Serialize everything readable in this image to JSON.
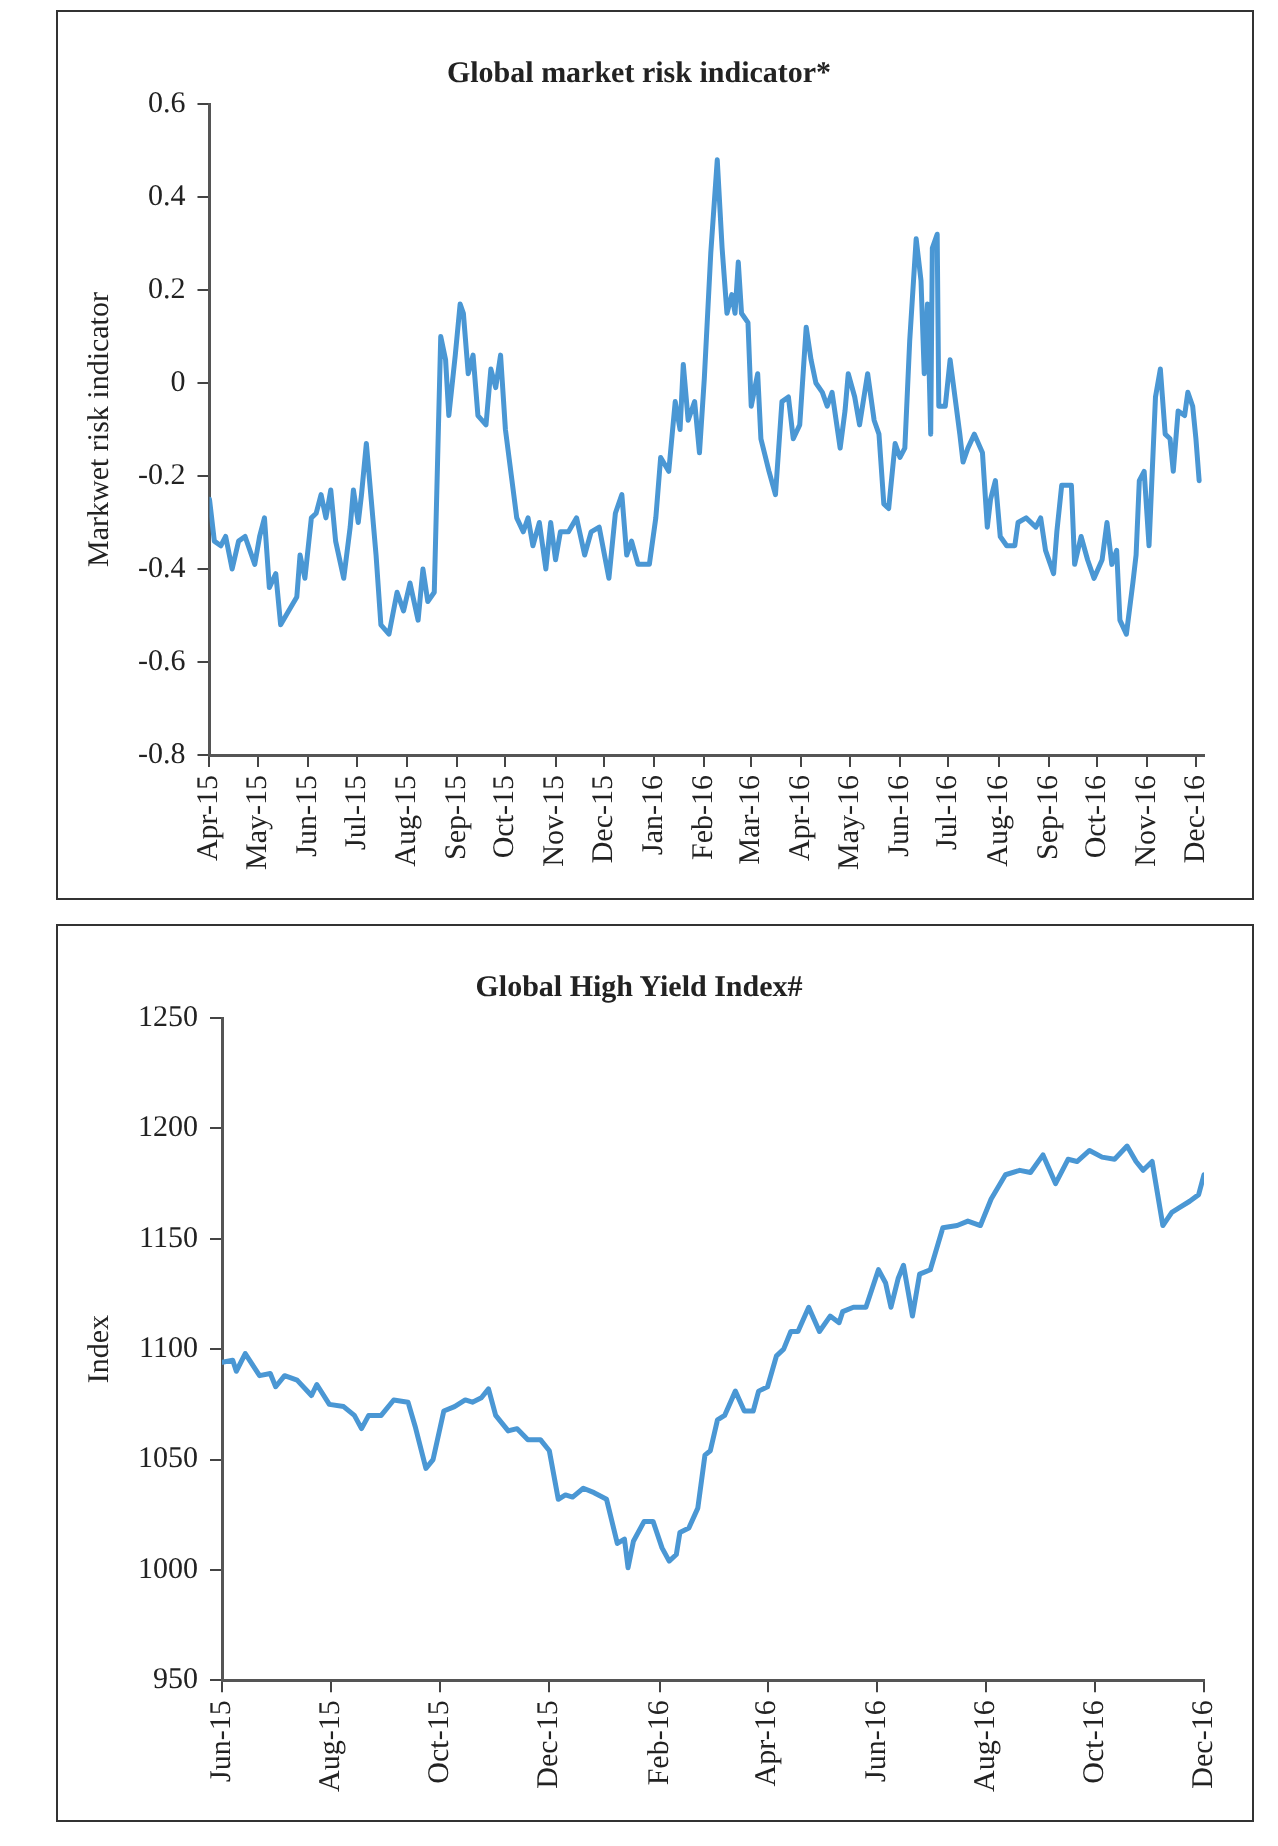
{
  "chart_data": [
    {
      "type": "line",
      "title": "Global market risk indicator*",
      "ylabel": "Markwet risk indicator",
      "xlim": [
        "2015-04-01",
        "2016-12-06"
      ],
      "ylim": [
        -0.8,
        0.6
      ],
      "yticks": [
        {
          "value": -0.8,
          "label": "-0.8"
        },
        {
          "value": -0.6,
          "label": "-0.6"
        },
        {
          "value": -0.4,
          "label": "-0.4"
        },
        {
          "value": -0.2,
          "label": "-0.2"
        },
        0,
        {
          "value": 0.2,
          "label": "0.2"
        },
        {
          "value": 0.4,
          "label": "0.4"
        },
        {
          "value": 0.6,
          "label": "0.6"
        }
      ],
      "xticks": [
        {
          "value": "2015-04-01",
          "label": "Apr-15"
        },
        {
          "value": "2015-05-01",
          "label": "May-15"
        },
        {
          "value": "2015-06-01",
          "label": "Jun-15"
        },
        {
          "value": "2015-07-01",
          "label": "Jul-15"
        },
        {
          "value": "2015-08-01",
          "label": "Aug-15"
        },
        {
          "value": "2015-09-01",
          "label": "Sep-15"
        },
        {
          "value": "2015-10-01",
          "label": "Oct-15"
        },
        {
          "value": "2015-11-01",
          "label": "Nov-15"
        },
        {
          "value": "2015-12-01",
          "label": "Dec-15"
        },
        {
          "value": "2016-01-01",
          "label": "Jan-16"
        },
        {
          "value": "2016-02-01",
          "label": "Feb-16"
        },
        {
          "value": "2016-03-01",
          "label": "Mar-16"
        },
        {
          "value": "2016-04-01",
          "label": "Apr-16"
        },
        {
          "value": "2016-05-01",
          "label": "May-16"
        },
        {
          "value": "2016-06-01",
          "label": "Jun-16"
        },
        {
          "value": "2016-07-01",
          "label": "Jul-16"
        },
        {
          "value": "2016-08-01",
          "label": "Aug-16"
        },
        {
          "value": "2016-09-01",
          "label": "Sep-16"
        },
        {
          "value": "2016-10-01",
          "label": "Oct-16"
        },
        {
          "value": "2016-11-01",
          "label": "Nov-16"
        },
        {
          "value": "2016-12-01",
          "label": "Dec-16"
        }
      ],
      "grid": false,
      "marker": "none",
      "line_style": "solid",
      "series": [
        {
          "color": "#4a97d4",
          "x": [
            "2015-04-01",
            "2015-04-04",
            "2015-04-08",
            "2015-04-11",
            "2015-04-15",
            "2015-04-19",
            "2015-04-23",
            "2015-04-29",
            "2015-05-02",
            "2015-05-05",
            "2015-05-08",
            "2015-05-12",
            "2015-05-15",
            "2015-05-20",
            "2015-05-25",
            "2015-05-27",
            "2015-05-30",
            "2015-06-03",
            "2015-06-06",
            "2015-06-09",
            "2015-06-12",
            "2015-06-15",
            "2015-06-18",
            "2015-06-23",
            "2015-06-27",
            "2015-06-29",
            "2015-07-02",
            "2015-07-04",
            "2015-07-07",
            "2015-07-10",
            "2015-07-13",
            "2015-07-16",
            "2015-07-21",
            "2015-07-26",
            "2015-07-30",
            "2015-08-03",
            "2015-08-08",
            "2015-08-11",
            "2015-08-14",
            "2015-08-18",
            "2015-08-22",
            "2015-08-25",
            "2015-08-27",
            "2015-08-31",
            "2015-09-03",
            "2015-09-05",
            "2015-09-08",
            "2015-09-11",
            "2015-09-14",
            "2015-09-19",
            "2015-09-22",
            "2015-09-25",
            "2015-09-28",
            "2015-10-01",
            "2015-10-08",
            "2015-10-12",
            "2015-10-15",
            "2015-10-18",
            "2015-10-22",
            "2015-10-26",
            "2015-10-29",
            "2015-11-01",
            "2015-11-04",
            "2015-11-09",
            "2015-11-14",
            "2015-11-19",
            "2015-11-23",
            "2015-11-28",
            "2015-12-04",
            "2015-12-08",
            "2015-12-12",
            "2015-12-15",
            "2015-12-18",
            "2015-12-22",
            "2015-12-29",
            "2016-01-02",
            "2016-01-05",
            "2016-01-10",
            "2016-01-14",
            "2016-01-17",
            "2016-01-19",
            "2016-01-22",
            "2016-01-26",
            "2016-01-29",
            "2016-02-01",
            "2016-02-05",
            "2016-02-09",
            "2016-02-12",
            "2016-02-15",
            "2016-02-18",
            "2016-02-20",
            "2016-02-22",
            "2016-02-24",
            "2016-02-28",
            "2016-03-01",
            "2016-03-05",
            "2016-03-07",
            "2016-03-12",
            "2016-03-16",
            "2016-03-20",
            "2016-03-24",
            "2016-03-27",
            "2016-03-31",
            "2016-04-04",
            "2016-04-07",
            "2016-04-10",
            "2016-04-14",
            "2016-04-17",
            "2016-04-20",
            "2016-04-25",
            "2016-04-28",
            "2016-04-30",
            "2016-05-04",
            "2016-05-07",
            "2016-05-12",
            "2016-05-16",
            "2016-05-19",
            "2016-05-22",
            "2016-05-25",
            "2016-05-29",
            "2016-06-01",
            "2016-06-04",
            "2016-06-07",
            "2016-06-11",
            "2016-06-14",
            "2016-06-16",
            "2016-06-18",
            "2016-06-20",
            "2016-06-21",
            "2016-06-24",
            "2016-06-25",
            "2016-06-29",
            "2016-07-02",
            "2016-07-05",
            "2016-07-08",
            "2016-07-10",
            "2016-07-13",
            "2016-07-17",
            "2016-07-22",
            "2016-07-25",
            "2016-07-27",
            "2016-07-30",
            "2016-08-02",
            "2016-08-06",
            "2016-08-11",
            "2016-08-13",
            "2016-08-18",
            "2016-08-24",
            "2016-08-27",
            "2016-08-30",
            "2016-09-04",
            "2016-09-06",
            "2016-09-09",
            "2016-09-15",
            "2016-09-17",
            "2016-09-21",
            "2016-09-25",
            "2016-09-29",
            "2016-10-04",
            "2016-10-07",
            "2016-10-10",
            "2016-10-13",
            "2016-10-15",
            "2016-10-19",
            "2016-10-23",
            "2016-10-25",
            "2016-10-27",
            "2016-10-30",
            "2016-11-02",
            "2016-11-06",
            "2016-11-09",
            "2016-11-12",
            "2016-11-15",
            "2016-11-17",
            "2016-11-20",
            "2016-11-24",
            "2016-11-26",
            "2016-11-29",
            "2016-12-01",
            "2016-12-03"
          ],
          "values": [
            -0.25,
            -0.34,
            -0.35,
            -0.33,
            -0.4,
            -0.34,
            -0.33,
            -0.39,
            -0.33,
            -0.29,
            -0.44,
            -0.41,
            -0.52,
            -0.49,
            -0.46,
            -0.37,
            -0.42,
            -0.29,
            -0.28,
            -0.24,
            -0.29,
            -0.23,
            -0.34,
            -0.42,
            -0.31,
            -0.23,
            -0.3,
            -0.24,
            -0.13,
            -0.25,
            -0.37,
            -0.52,
            -0.54,
            -0.45,
            -0.49,
            -0.43,
            -0.51,
            -0.4,
            -0.47,
            -0.45,
            0.1,
            0.05,
            -0.07,
            0.06,
            0.17,
            0.15,
            0.02,
            0.06,
            -0.07,
            -0.09,
            0.03,
            -0.01,
            0.06,
            -0.1,
            -0.29,
            -0.32,
            -0.29,
            -0.35,
            -0.3,
            -0.4,
            -0.3,
            -0.38,
            -0.32,
            -0.32,
            -0.29,
            -0.37,
            -0.32,
            -0.31,
            -0.42,
            -0.28,
            -0.24,
            -0.37,
            -0.34,
            -0.39,
            -0.39,
            -0.29,
            -0.16,
            -0.19,
            -0.04,
            -0.1,
            0.04,
            -0.08,
            -0.04,
            -0.15,
            0.01,
            0.28,
            0.48,
            0.29,
            0.15,
            0.19,
            0.15,
            0.26,
            0.15,
            0.13,
            -0.05,
            0.02,
            -0.12,
            -0.19,
            -0.24,
            -0.04,
            -0.03,
            -0.12,
            -0.09,
            0.12,
            0.05,
            0,
            -0.02,
            -0.05,
            -0.02,
            -0.14,
            -0.06,
            0.02,
            -0.03,
            -0.09,
            0.02,
            -0.08,
            -0.11,
            -0.26,
            -0.27,
            -0.13,
            -0.16,
            -0.14,
            0.09,
            0.31,
            0.22,
            0.02,
            0.17,
            -0.11,
            0.29,
            0.32,
            -0.05,
            -0.05,
            0.05,
            -0.03,
            -0.11,
            -0.17,
            -0.14,
            -0.11,
            -0.15,
            -0.31,
            -0.25,
            -0.21,
            -0.33,
            -0.35,
            -0.35,
            -0.3,
            -0.29,
            -0.31,
            -0.29,
            -0.36,
            -0.41,
            -0.32,
            -0.22,
            -0.22,
            -0.39,
            -0.33,
            -0.38,
            -0.42,
            -0.38,
            -0.3,
            -0.39,
            -0.36,
            -0.51,
            -0.54,
            -0.43,
            -0.37,
            -0.21,
            -0.19,
            -0.35,
            -0.03,
            0.03,
            -0.11,
            -0.12,
            -0.19,
            -0.06,
            -0.07,
            -0.02,
            -0.05,
            -0.12,
            -0.21
          ]
        }
      ]
    },
    {
      "type": "line",
      "title": "Global High Yield Index#",
      "ylabel": "Index",
      "xlim": [
        "2015-06-01",
        "2016-12-01"
      ],
      "ylim": [
        950,
        1250
      ],
      "yticks": [
        950,
        1000,
        1050,
        1100,
        1150,
        1200,
        1250
      ],
      "xticks": [
        {
          "value": "2015-06-01",
          "label": "Jun-15"
        },
        {
          "value": "2015-08-01",
          "label": "Aug-15"
        },
        {
          "value": "2015-10-01",
          "label": "Oct-15"
        },
        {
          "value": "2015-12-01",
          "label": "Dec-15"
        },
        {
          "value": "2016-02-01",
          "label": "Feb-16"
        },
        {
          "value": "2016-04-01",
          "label": "Apr-16"
        },
        {
          "value": "2016-06-01",
          "label": "Jun-16"
        },
        {
          "value": "2016-08-01",
          "label": "Aug-16"
        },
        {
          "value": "2016-10-01",
          "label": "Oct-16"
        },
        {
          "value": "2016-12-01",
          "label": "Dec-16"
        }
      ],
      "grid": false,
      "marker": "none",
      "line_style": "solid",
      "series": [
        {
          "color": "#4a97d4",
          "x": [
            "2015-06-01",
            "2015-06-07",
            "2015-06-09",
            "2015-06-14",
            "2015-06-22",
            "2015-06-28",
            "2015-07-01",
            "2015-07-06",
            "2015-07-13",
            "2015-07-21",
            "2015-07-24",
            "2015-07-31",
            "2015-08-08",
            "2015-08-14",
            "2015-08-18",
            "2015-08-22",
            "2015-08-29",
            "2015-09-05",
            "2015-09-13",
            "2015-09-17",
            "2015-09-23",
            "2015-09-27",
            "2015-10-03",
            "2015-10-09",
            "2015-10-15",
            "2015-10-19",
            "2015-10-24",
            "2015-10-28",
            "2015-11-01",
            "2015-11-08",
            "2015-11-13",
            "2015-11-19",
            "2015-11-26",
            "2015-12-01",
            "2015-12-06",
            "2015-12-10",
            "2015-12-14",
            "2015-12-20",
            "2015-12-26",
            "2016-01-02",
            "2016-01-08",
            "2016-01-12",
            "2016-01-14",
            "2016-01-17",
            "2016-01-23",
            "2016-01-28",
            "2016-02-02",
            "2016-02-06",
            "2016-02-10",
            "2016-02-12",
            "2016-02-17",
            "2016-02-22",
            "2016-02-26",
            "2016-02-29",
            "2016-03-04",
            "2016-03-08",
            "2016-03-14",
            "2016-03-19",
            "2016-03-24",
            "2016-03-27",
            "2016-04-01",
            "2016-04-06",
            "2016-04-10",
            "2016-04-14",
            "2016-04-18",
            "2016-04-24",
            "2016-04-30",
            "2016-05-06",
            "2016-05-11",
            "2016-05-13",
            "2016-05-19",
            "2016-05-26",
            "2016-06-02",
            "2016-06-06",
            "2016-06-09",
            "2016-06-13",
            "2016-06-16",
            "2016-06-21",
            "2016-06-25",
            "2016-07-01",
            "2016-07-08",
            "2016-07-16",
            "2016-07-22",
            "2016-07-29",
            "2016-08-04",
            "2016-08-12",
            "2016-08-20",
            "2016-08-26",
            "2016-09-02",
            "2016-09-09",
            "2016-09-16",
            "2016-09-21",
            "2016-09-28",
            "2016-10-05",
            "2016-10-12",
            "2016-10-19",
            "2016-10-24",
            "2016-10-28",
            "2016-11-02",
            "2016-11-08",
            "2016-11-13",
            "2016-11-17",
            "2016-11-23",
            "2016-11-28",
            "2016-12-01"
          ],
          "values": [
            1094,
            1095,
            1090,
            1098,
            1088,
            1089,
            1083,
            1088,
            1086,
            1079,
            1084,
            1075,
            1074,
            1070,
            1064,
            1070,
            1070,
            1077,
            1076,
            1065,
            1046,
            1050,
            1072,
            1074,
            1077,
            1076,
            1078,
            1082,
            1070,
            1063,
            1064,
            1059,
            1059,
            1054,
            1032,
            1034,
            1033,
            1037,
            1035,
            1032,
            1012,
            1014,
            1001,
            1013,
            1022,
            1022,
            1010,
            1004,
            1007,
            1017,
            1019,
            1028,
            1052,
            1054,
            1068,
            1070,
            1081,
            1072,
            1072,
            1081,
            1083,
            1097,
            1100,
            1108,
            1108,
            1119,
            1108,
            1115,
            1112,
            1117,
            1119,
            1119,
            1136,
            1130,
            1119,
            1132,
            1138,
            1115,
            1134,
            1136,
            1155,
            1156,
            1158,
            1156,
            1168,
            1179,
            1181,
            1180,
            1188,
            1175,
            1186,
            1185,
            1190,
            1187,
            1186,
            1192,
            1185,
            1181,
            1185,
            1156,
            1162,
            1164,
            1167,
            1170,
            1179
          ]
        }
      ]
    }
  ]
}
